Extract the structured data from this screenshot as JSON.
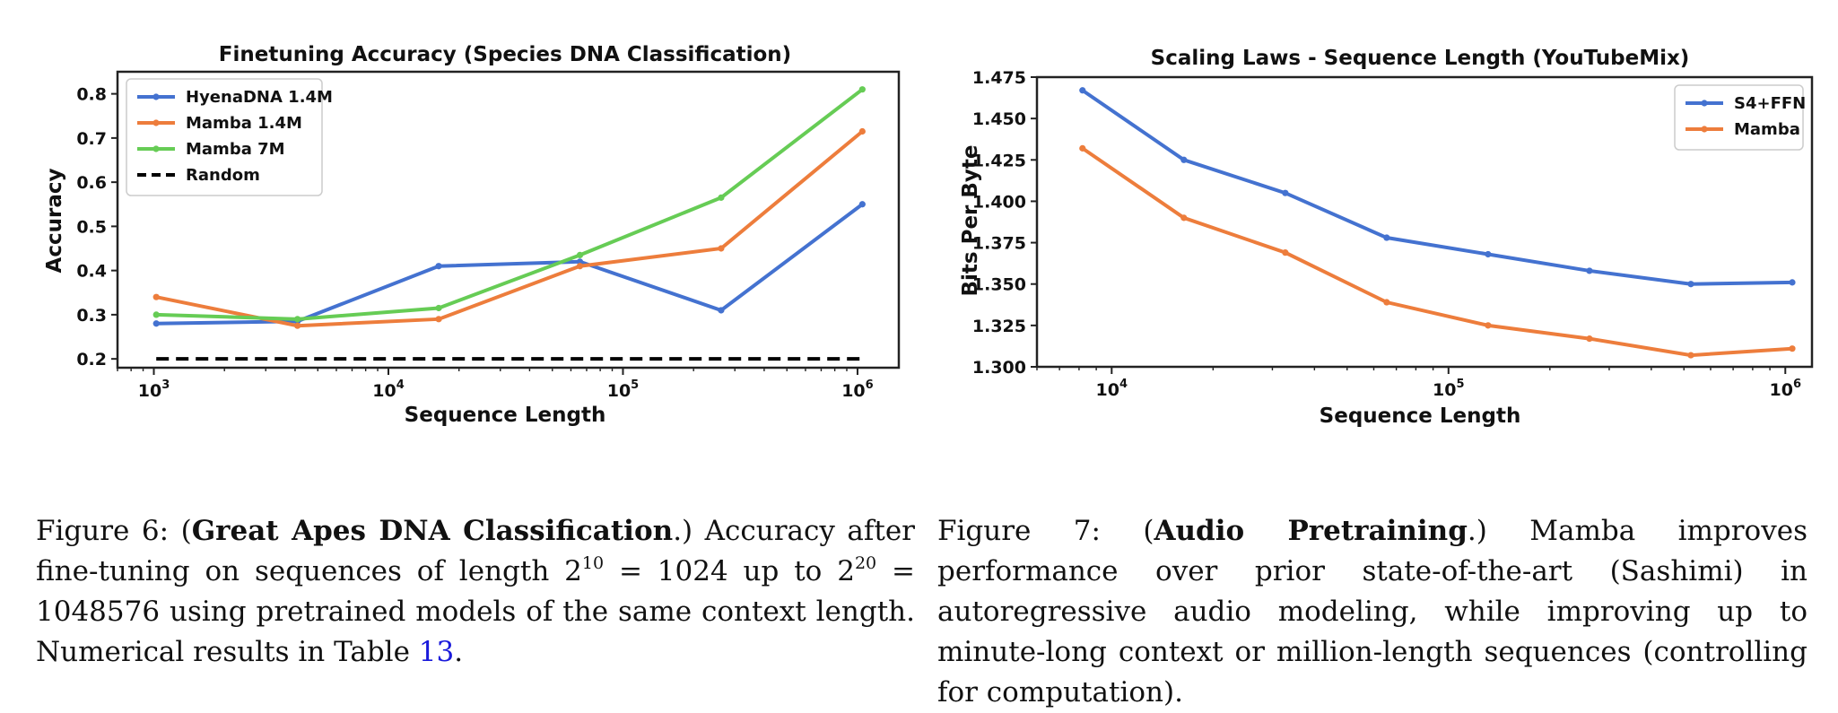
{
  "figure6": {
    "chart_data": {
      "type": "line",
      "title": "Finetuning Accuracy (Species DNA Classification)",
      "xlabel": "Sequence Length",
      "ylabel": "Accuracy",
      "xscale": "log",
      "xlim": [
        700,
        1500000
      ],
      "ylim": [
        0.18,
        0.85
      ],
      "x": [
        1024,
        4096,
        16384,
        65536,
        262144,
        1048576
      ],
      "xticks": [
        1000,
        10000,
        100000,
        1000000
      ],
      "xtick_labels": [
        [
          "10",
          "3"
        ],
        [
          "10",
          "4"
        ],
        [
          "10",
          "5"
        ],
        [
          "10",
          "6"
        ]
      ],
      "yticks": [
        0.2,
        0.3,
        0.4,
        0.5,
        0.6,
        0.7,
        0.8
      ],
      "ytick_labels": [
        "0.2",
        "0.3",
        "0.4",
        "0.5",
        "0.6",
        "0.7",
        "0.8"
      ],
      "grid": false,
      "legend_position": "upper-left",
      "series": [
        {
          "name": "HyenaDNA 1.4M",
          "color": "#4472d0",
          "style": "solid-marker",
          "values": [
            0.28,
            0.285,
            0.41,
            0.42,
            0.31,
            0.55
          ]
        },
        {
          "name": "Mamba 1.4M",
          "color": "#ed7d3c",
          "style": "solid-marker",
          "values": [
            0.34,
            0.275,
            0.29,
            0.41,
            0.45,
            0.715
          ]
        },
        {
          "name": "Mamba 7M",
          "color": "#66cc55",
          "style": "solid-marker",
          "values": [
            0.3,
            0.29,
            0.315,
            0.435,
            0.565,
            0.81
          ]
        },
        {
          "name": "Random",
          "color": "#000000",
          "style": "dashed",
          "values": [
            0.2,
            0.2,
            0.2,
            0.2,
            0.2,
            0.2
          ]
        }
      ]
    },
    "caption": {
      "prefix": "Figure 6: (",
      "bold": "Great Apes DNA Classification",
      "text1": ".) Accuracy after fine-tuning on sequences of length 2",
      "sup1": "10",
      "text2": " = 1024 up to 2",
      "sup2": "20",
      "text3": " = 1048576 using pretrained models of the same context length. Numerical results in Table ",
      "ref": "13",
      "text4": "."
    }
  },
  "figure7": {
    "chart_data": {
      "type": "line",
      "title": "Scaling Laws - Sequence Length (YouTubeMix)",
      "xlabel": "Sequence Length",
      "ylabel": "Bits Per Byte",
      "xscale": "log",
      "xlim": [
        6000,
        1200000
      ],
      "ylim": [
        1.3,
        1.475
      ],
      "x": [
        8192,
        16384,
        32768,
        65536,
        131072,
        262144,
        524288,
        1048576
      ],
      "xticks": [
        10000,
        100000,
        1000000
      ],
      "xtick_labels": [
        [
          "10",
          "4"
        ],
        [
          "10",
          "5"
        ],
        [
          "10",
          "6"
        ]
      ],
      "yticks": [
        1.3,
        1.325,
        1.35,
        1.375,
        1.4,
        1.425,
        1.45,
        1.475
      ],
      "ytick_labels": [
        "1.300",
        "1.325",
        "1.350",
        "1.375",
        "1.400",
        "1.425",
        "1.450",
        "1.475"
      ],
      "grid": false,
      "legend_position": "upper-right",
      "series": [
        {
          "name": "S4+FFN",
          "color": "#4472d0",
          "style": "solid-marker",
          "values": [
            1.467,
            1.425,
            1.405,
            1.378,
            1.368,
            1.358,
            1.35,
            1.351
          ]
        },
        {
          "name": "Mamba",
          "color": "#ed7d3c",
          "style": "solid-marker",
          "values": [
            1.432,
            1.39,
            1.369,
            1.339,
            1.325,
            1.317,
            1.307,
            1.311
          ]
        }
      ]
    },
    "caption": {
      "prefix": "Figure 7: (",
      "bold": "Audio Pretraining",
      "text1": ".) Mamba improves performance over prior state-of-the-art (Sashimi) in autoregressive audio modeling, while improving up to minute-long context or million-length sequences (controlling for computation)."
    }
  }
}
